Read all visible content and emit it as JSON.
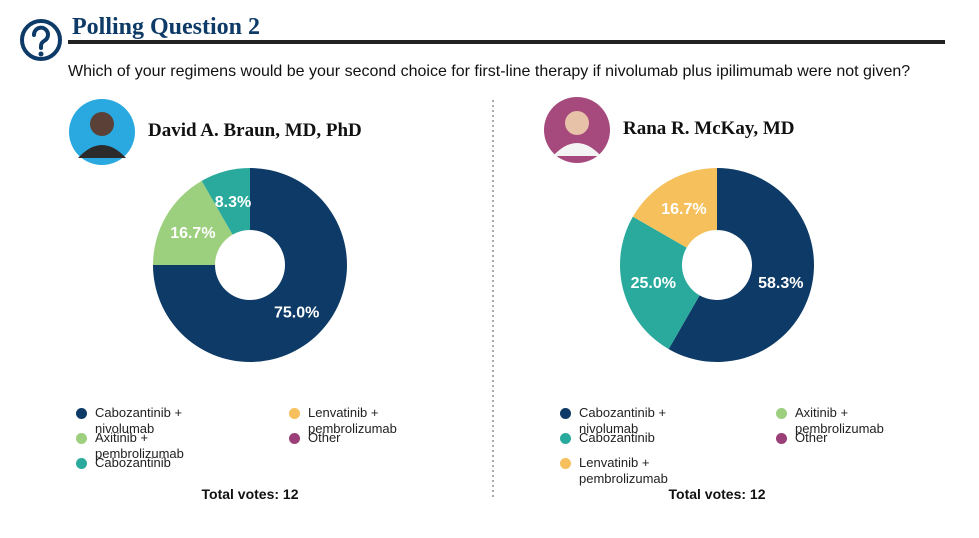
{
  "header": {
    "title": "Polling Question 2",
    "question": "Which of your regimens would be your second choice for first-line therapy if nivolumab plus ipilimumab were not given?"
  },
  "chart_data": [
    {
      "type": "donut",
      "title": "David A. Braun, MD, PhD",
      "categories": [
        "Cabozantinib + nivolumab",
        "Axitinib + pembrolizumab",
        "Cabozantinib",
        "Lenvatinib + pembrolizumab",
        "Other"
      ],
      "values": [
        75.0,
        16.7,
        8.3,
        0,
        0
      ],
      "value_labels": [
        "75.0%",
        "16.7%",
        "8.3%",
        null,
        null
      ],
      "colors": [
        "#0d3a66",
        "#9ccf7e",
        "#2aaa9d",
        "#f6c05c",
        "#9b3f78"
      ],
      "note": "Total votes: 12"
    },
    {
      "type": "donut",
      "title": "Rana R. McKay, MD",
      "categories": [
        "Cabozantinib + nivolumab",
        "Cabozantinib",
        "Lenvatinib + pembrolizumab",
        "Axitinib + pembrolizumab",
        "Other"
      ],
      "values": [
        58.3,
        25.0,
        16.7,
        0,
        0
      ],
      "value_labels": [
        "58.3%",
        "25.0%",
        "16.7%",
        null,
        null
      ],
      "colors": [
        "#0d3a66",
        "#2aaa9d",
        "#f6c05c",
        "#9ccf7e",
        "#9b3f78"
      ],
      "note": "Total votes: 12"
    }
  ]
}
